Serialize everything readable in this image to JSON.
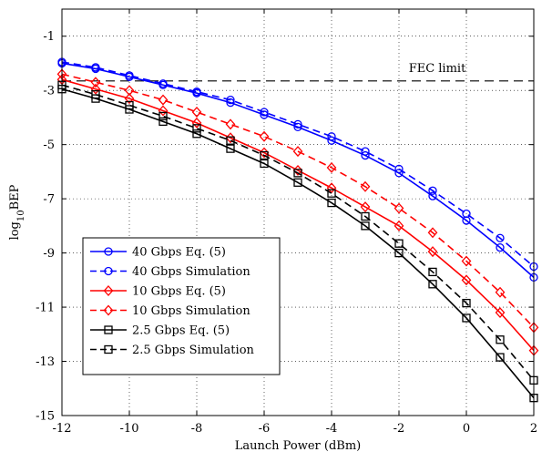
{
  "chart_data": {
    "type": "line",
    "title": "",
    "xlabel": "Launch Power (dBm)",
    "ylabel_main": "log",
    "ylabel_sub": "10",
    "ylabel_rest": "BEP",
    "xlim": [
      -12,
      2
    ],
    "ylim": [
      -15,
      0
    ],
    "xticks": [
      -12,
      -10,
      -8,
      -6,
      -4,
      -2,
      0,
      2
    ],
    "yticks": [
      -1,
      -3,
      -5,
      -7,
      -9,
      -11,
      -13,
      -15
    ],
    "grid": true,
    "legend_position": "lower-left",
    "annotation": {
      "text": "FEC limit",
      "y": -2.65
    },
    "x": [
      -12,
      -11,
      -10,
      -9,
      -8,
      -7,
      -6,
      -5,
      -4,
      -3,
      -2,
      -1,
      0,
      1,
      2
    ],
    "series": [
      {
        "name": "40 Gbps Eq. (5)",
        "color": "#0000ff",
        "dashed": false,
        "marker": "circle",
        "values": [
          -2.0,
          -2.2,
          -2.5,
          -2.8,
          -3.1,
          -3.45,
          -3.9,
          -4.35,
          -4.85,
          -5.4,
          -6.05,
          -6.9,
          -7.8,
          -8.8,
          -9.9
        ]
      },
      {
        "name": "40 Gbps Simulation",
        "color": "#0000ff",
        "dashed": true,
        "marker": "circle",
        "values": [
          -1.95,
          -2.15,
          -2.45,
          -2.75,
          -3.05,
          -3.35,
          -3.8,
          -4.25,
          -4.7,
          -5.25,
          -5.9,
          -6.7,
          -7.55,
          -8.45,
          -9.5
        ]
      },
      {
        "name": "10 Gbps Eq. (5)",
        "color": "#ff0000",
        "dashed": false,
        "marker": "diamond",
        "values": [
          -2.6,
          -2.95,
          -3.3,
          -3.75,
          -4.2,
          -4.75,
          -5.3,
          -5.95,
          -6.6,
          -7.3,
          -8.0,
          -8.95,
          -10.0,
          -11.2,
          -12.6
        ]
      },
      {
        "name": "10 Gbps Simulation",
        "color": "#ff0000",
        "dashed": true,
        "marker": "diamond",
        "values": [
          -2.4,
          -2.7,
          -3.0,
          -3.35,
          -3.8,
          -4.25,
          -4.7,
          -5.25,
          -5.85,
          -6.55,
          -7.35,
          -8.25,
          -9.3,
          -10.45,
          -11.75
        ]
      },
      {
        "name": "2.5 Gbps Eq. (5)",
        "color": "#000000",
        "dashed": false,
        "marker": "square",
        "values": [
          -2.95,
          -3.3,
          -3.7,
          -4.15,
          -4.6,
          -5.15,
          -5.7,
          -6.4,
          -7.15,
          -8.0,
          -9.0,
          -10.15,
          -11.4,
          -12.85,
          -14.35
        ]
      },
      {
        "name": "2.5 Gbps Simulation",
        "color": "#000000",
        "dashed": true,
        "marker": "square",
        "values": [
          -2.8,
          -3.15,
          -3.55,
          -3.95,
          -4.4,
          -4.85,
          -5.4,
          -6.05,
          -6.8,
          -7.65,
          -8.65,
          -9.7,
          -10.85,
          -12.2,
          -13.7
        ]
      }
    ]
  }
}
